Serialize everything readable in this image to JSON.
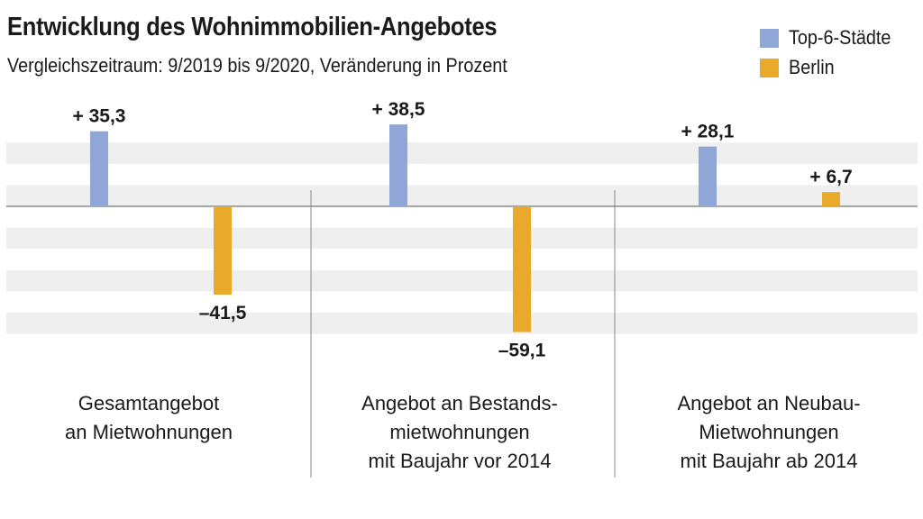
{
  "title": "Entwicklung des Wohnimmobilien-Angebotes",
  "subtitle": "Vergleichszeitraum: 9/2019 bis 9/2020, Veränderung in Prozent",
  "colors": {
    "top6": "#8fa6d6",
    "berlin": "#e9a92b",
    "stripe": "#efefef",
    "axis": "#777777"
  },
  "chart_data": {
    "type": "bar",
    "title": "Entwicklung des Wohnimmobilien-Angebotes",
    "subtitle": "Vergleichszeitraum: 9/2019 bis 9/2020, Veränderung in Prozent",
    "categories": [
      [
        "Gesamtangebot",
        "an Mietwohnungen"
      ],
      [
        "Angebot an Bestands-",
        "mietwohnungen",
        "mit Baujahr vor 2014"
      ],
      [
        "Angebot an Neubau-",
        "Mietwohnungen",
        "mit Baujahr ab 2014"
      ]
    ],
    "series": [
      {
        "name": "Top-6-Städte",
        "values": [
          35.3,
          38.5,
          28.1
        ],
        "labels": [
          "+ 35,3",
          "+ 38,5",
          "+ 28,1"
        ]
      },
      {
        "name": "Berlin",
        "values": [
          -41.5,
          -59.1,
          6.7
        ],
        "labels": [
          "–41,5",
          "–59,1",
          "+ 6,7"
        ]
      }
    ],
    "ylim": [
      -70,
      45
    ],
    "grid": "horizontal stripes",
    "legend_position": "top-right"
  }
}
